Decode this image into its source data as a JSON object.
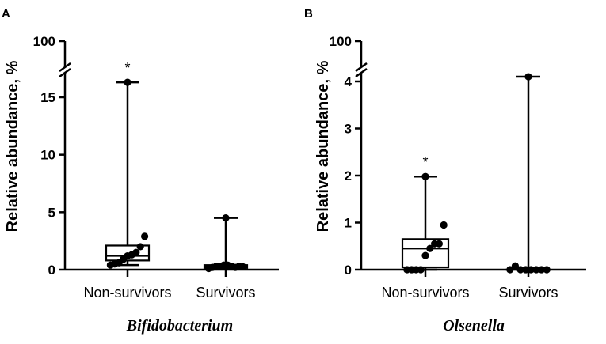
{
  "chart_data": [
    {
      "type": "box",
      "panel_label": "A",
      "title": "Bifidobacterium",
      "ylabel": "Relative abundance, %",
      "xlabel": "",
      "y_ticks": [
        "0",
        "5",
        "10",
        "15",
        "100"
      ],
      "y_tick_values": [
        0,
        5,
        10,
        15,
        100
      ],
      "axis_break": true,
      "grid": false,
      "groups": [
        {
          "name": "Non-survivors",
          "min": 0.4,
          "q1": 0.8,
          "median": 1.2,
          "q3": 2.1,
          "max": 16.3,
          "points": [
            0.4,
            0.5,
            0.6,
            0.9,
            1.2,
            1.3,
            1.5,
            2.0,
            2.9,
            16.3
          ],
          "significance": "*"
        },
        {
          "name": "Survivors",
          "min": 0.05,
          "q1": 0.15,
          "median": 0.3,
          "q3": 0.4,
          "max": 4.5,
          "points": [
            0.1,
            0.2,
            0.3,
            0.3,
            0.4,
            0.4,
            0.3,
            0.2,
            0.3,
            0.25,
            4.5
          ],
          "significance": ""
        }
      ]
    },
    {
      "type": "box",
      "panel_label": "B",
      "title": "Olsenella",
      "ylabel": "Relative abundance, %",
      "xlabel": "",
      "y_ticks": [
        "0",
        "1",
        "2",
        "3",
        "4",
        "100"
      ],
      "y_tick_values": [
        0,
        1,
        2,
        3,
        4,
        100
      ],
      "axis_break": true,
      "grid": false,
      "groups": [
        {
          "name": "Non-survivors",
          "min": 0.0,
          "q1": 0.05,
          "median": 0.45,
          "q3": 0.65,
          "max": 1.98,
          "points": [
            0.0,
            0.0,
            0.0,
            0.0,
            0.3,
            0.45,
            0.55,
            0.55,
            0.95,
            1.98
          ],
          "significance": "*"
        },
        {
          "name": "Survivors",
          "min": 0.0,
          "q1": 0.0,
          "median": 0.0,
          "q3": 0.0,
          "max": 4.1,
          "points": [
            0.0,
            0.08,
            0.0,
            0.0,
            0.0,
            0.0,
            0.0,
            0.0,
            4.1
          ],
          "significance": ""
        }
      ]
    }
  ]
}
